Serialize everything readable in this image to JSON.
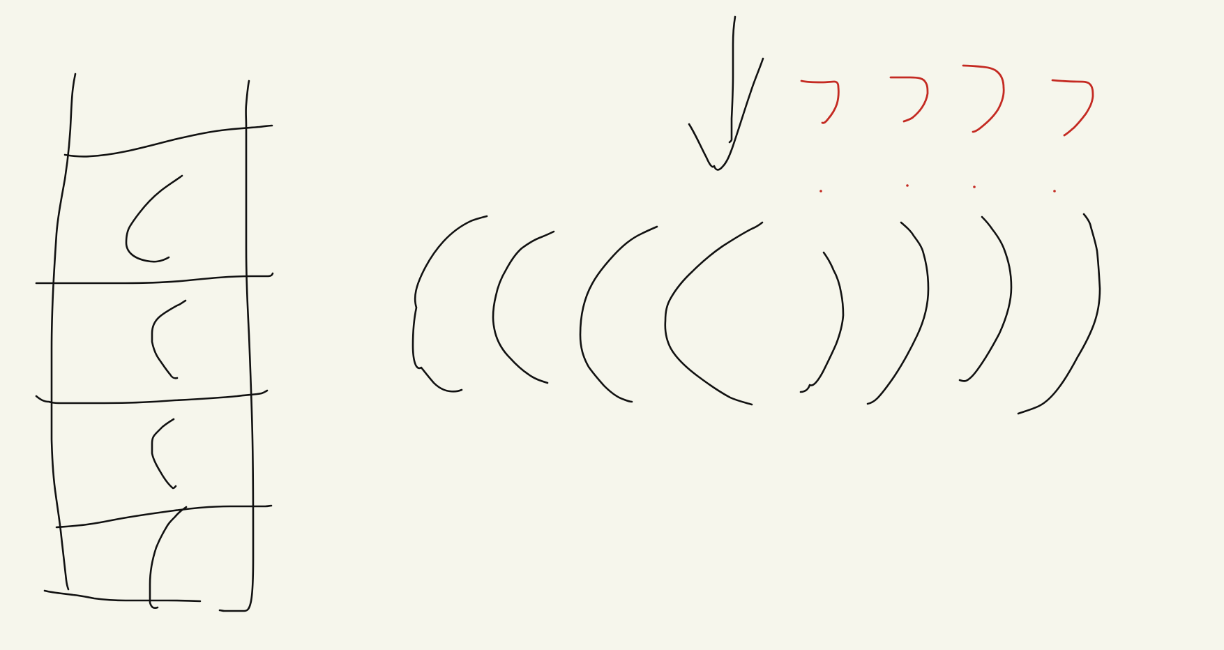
{
  "canvas": {
    "background": "#f6f6ec"
  },
  "colors": {
    "ink": "#111111",
    "accent_ink": "#c42a22"
  },
  "sketch": {
    "groups": [
      {
        "name": "ladder-diagram",
        "strokes": 14,
        "ink": "black"
      },
      {
        "name": "down-arrow",
        "strokes": 2,
        "ink": "black"
      },
      {
        "name": "red-question-marks",
        "strokes": 8,
        "ink": "red"
      },
      {
        "name": "open-parentheses",
        "strokes": 4,
        "ink": "black"
      },
      {
        "name": "close-parentheses",
        "strokes": 4,
        "ink": "black"
      }
    ]
  }
}
